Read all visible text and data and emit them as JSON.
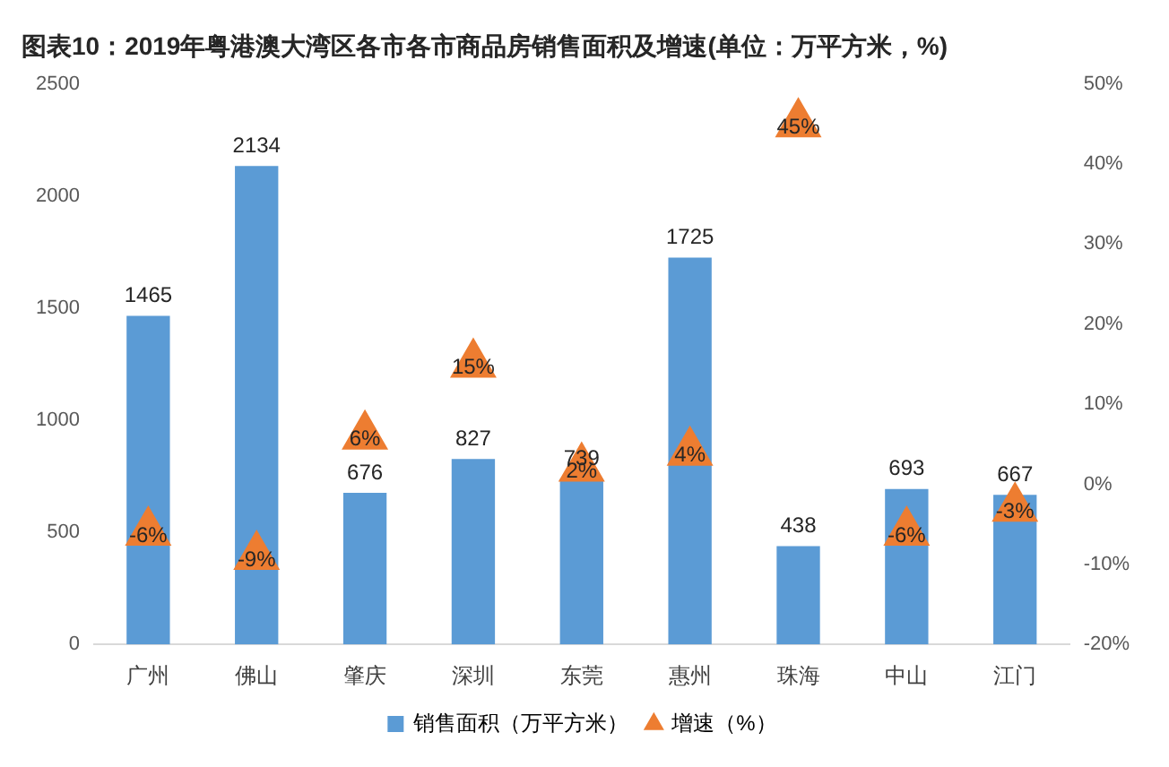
{
  "chart_data": {
    "type": "bar",
    "title": "图表10：2019年粤港澳大湾区各市各市商品房销售面积及增速(单位：万平方米，%)",
    "categories": [
      "广州",
      "佛山",
      "肇庆",
      "深圳",
      "东莞",
      "惠州",
      "珠海",
      "中山",
      "江门"
    ],
    "series": [
      {
        "name": "销售面积（万平方米）",
        "color": "#5b9bd5",
        "values": [
          1465,
          2134,
          676,
          827,
          739,
          1725,
          438,
          693,
          667
        ]
      },
      {
        "name": "增速（%）",
        "type": "scatter",
        "axis": "y2",
        "marker": "triangle",
        "color": "#ed7d31",
        "values": [
          -6,
          -9,
          6,
          15,
          2,
          4,
          45,
          -6,
          -3
        ],
        "value_labels": [
          "-6%",
          "-9%",
          "6%",
          "15%",
          "2%",
          "4%",
          "45%",
          "-6%",
          "-3%"
        ]
      }
    ],
    "ylim": [
      0,
      2500
    ],
    "yticks": [
      0,
      500,
      1000,
      1500,
      2000,
      2500
    ],
    "y2lim": [
      -20,
      50
    ],
    "y2ticks": [
      {
        "value": -20,
        "label": "-20%"
      },
      {
        "value": -10,
        "label": "-10%"
      },
      {
        "value": 0,
        "label": "0%"
      },
      {
        "value": 10,
        "label": "10%"
      },
      {
        "value": 20,
        "label": "20%"
      },
      {
        "value": 30,
        "label": "30%"
      },
      {
        "value": 40,
        "label": "40%"
      },
      {
        "value": 50,
        "label": "50%"
      }
    ],
    "grid": false,
    "legend": "bottom",
    "data_labels": true
  }
}
